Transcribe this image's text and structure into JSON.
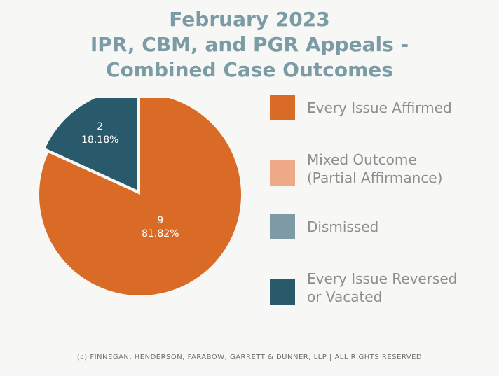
{
  "chart_data": {
    "type": "pie",
    "title": [
      "February 2023",
      "IPR, CBM, and PGR Appeals -",
      "Combined Case Outcomes"
    ],
    "slices": [
      {
        "name": "Every Issue Affirmed",
        "value": 9,
        "label_count": "9",
        "label_percent": "81.82%",
        "color": "#d96b27"
      },
      {
        "name": "Mixed Outcome (Partial Affirmance)",
        "value": 0,
        "color": "#eeaa86"
      },
      {
        "name": "Dismissed",
        "value": 0,
        "color": "#7e9ba5"
      },
      {
        "name": "Every Issue Reversed or Vacated",
        "value": 2,
        "label_count": "2",
        "label_percent": "18.18%",
        "color": "#285a6b"
      }
    ],
    "legend": [
      {
        "lines": [
          "Every Issue Affirmed"
        ],
        "color": "#d96b27"
      },
      {
        "lines": [
          "Mixed Outcome",
          "(Partial Affirmance)"
        ],
        "color": "#eeaa86"
      },
      {
        "lines": [
          "Dismissed"
        ],
        "color": "#7e9ba5"
      },
      {
        "lines": [
          "Every Issue Reversed",
          "or Vacated"
        ],
        "color": "#285a6b"
      }
    ],
    "legend_position": "right"
  },
  "footer": "(c) FINNEGAN, HENDERSON, FARABOW, GARRETT & DUNNER, LLP | ALL RIGHTS RESERVED"
}
